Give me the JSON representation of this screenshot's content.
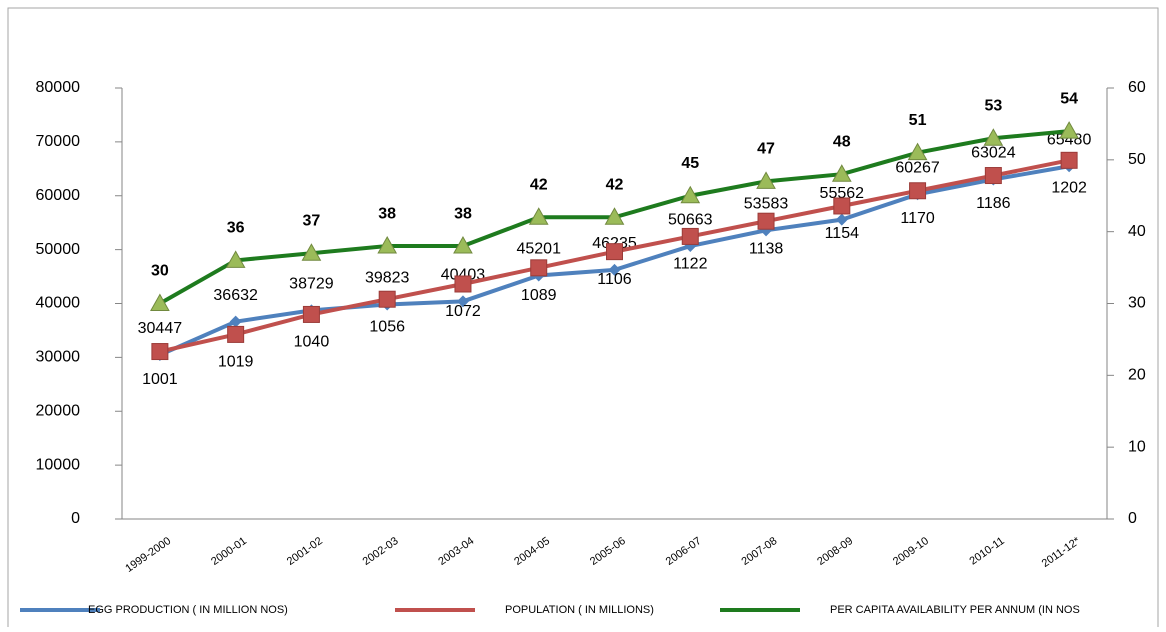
{
  "chart_data": {
    "type": "line",
    "categories": [
      "1999-2000",
      "2000-01",
      "2001-02",
      "2002-03",
      "2003-04",
      "2004-05",
      "2005-06",
      "2006-07",
      "2007-08",
      "2008-09",
      "2009-10",
      "2010-11",
      "2011-12*"
    ],
    "series": [
      {
        "name": "EGG PRODUCTION ( IN MILLION NOS)",
        "color": "#4f81bd",
        "values": [
          30447,
          36632,
          38729,
          39823,
          40403,
          45201,
          46235,
          50663,
          53583,
          55562,
          60267,
          63024,
          65480
        ]
      },
      {
        "name": "POPULATION ( IN MILLIONS)",
        "color": "#c0504d",
        "axis": "y3",
        "values": [
          1001,
          1019,
          1040,
          1056,
          1072,
          1089,
          1106,
          1122,
          1138,
          1154,
          1170,
          1186,
          1202
        ]
      },
      {
        "name": "PER CAPITA AVAILABILITY PER ANNUM (IN NOS",
        "color": "#1e7b1e",
        "axis": "y2",
        "values": [
          30,
          36,
          37,
          38,
          38,
          42,
          42,
          45,
          47,
          48,
          51,
          53,
          54
        ]
      }
    ],
    "ylim": [
      0,
      80000
    ],
    "yticks": [
      0,
      10000,
      20000,
      30000,
      40000,
      50000,
      60000,
      70000,
      80000
    ],
    "y2lim": [
      0,
      60
    ],
    "y2ticks": [
      0,
      10,
      20,
      30,
      40,
      50,
      60
    ],
    "y3lim": [
      825,
      1278
    ]
  }
}
